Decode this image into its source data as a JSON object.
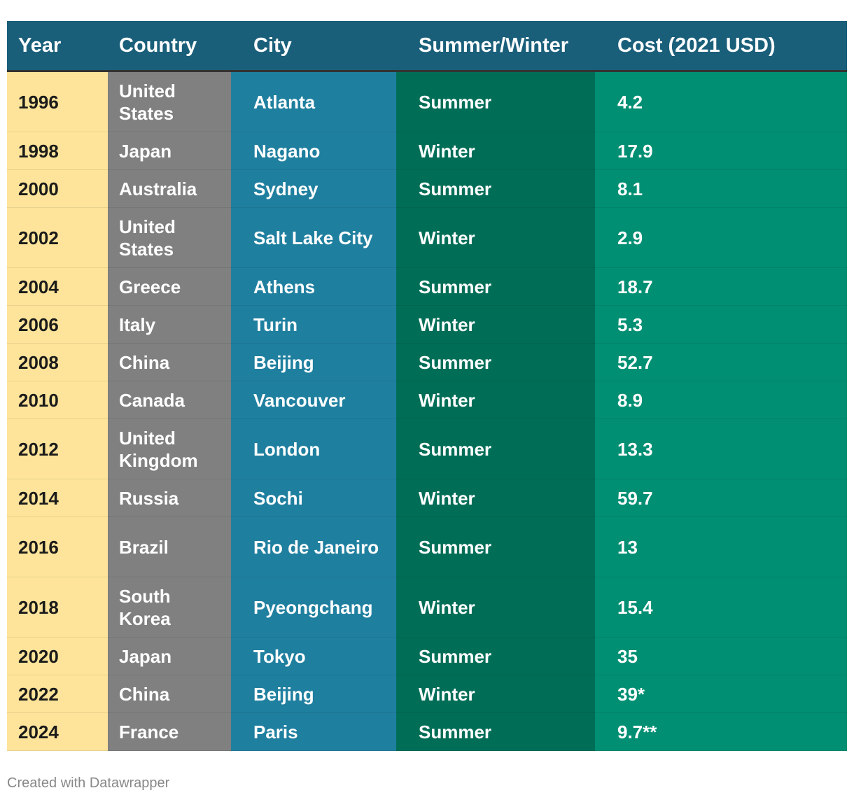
{
  "chart_data": {
    "type": "table",
    "columns": [
      "Year",
      "Country",
      "City",
      "Summer/Winter",
      "Cost (2021 USD)"
    ],
    "rows": [
      [
        "1996",
        "United States",
        "Atlanta",
        "Summer",
        "4.2"
      ],
      [
        "1998",
        "Japan",
        "Nagano",
        "Winter",
        "17.9"
      ],
      [
        "2000",
        "Australia",
        "Sydney",
        "Summer",
        "8.1"
      ],
      [
        "2002",
        "United States",
        "Salt Lake City",
        "Winter",
        "2.9"
      ],
      [
        "2004",
        "Greece",
        "Athens",
        "Summer",
        "18.7"
      ],
      [
        "2006",
        "Italy",
        "Turin",
        "Winter",
        "5.3"
      ],
      [
        "2008",
        "China",
        "Beijing",
        "Summer",
        "52.7"
      ],
      [
        "2010",
        "Canada",
        "Vancouver",
        "Winter",
        "8.9"
      ],
      [
        "2012",
        "United Kingdom",
        "London",
        "Summer",
        "13.3"
      ],
      [
        "2014",
        "Russia",
        "Sochi",
        "Winter",
        "59.7"
      ],
      [
        "2016",
        "Brazil",
        "Rio de Janeiro",
        "Summer",
        "13"
      ],
      [
        "2018",
        "South Korea",
        "Pyeongchang",
        "Winter",
        "15.4"
      ],
      [
        "2020",
        "Japan",
        "Tokyo",
        "Summer",
        "35"
      ],
      [
        "2022",
        "China",
        "Beijing",
        "Winter",
        "39*"
      ],
      [
        "2024",
        "France",
        "Paris",
        "Summer",
        "9.7**"
      ]
    ],
    "column_colors": [
      "#fde49a",
      "#808080",
      "#1f7f9f",
      "#006e57",
      "#008f73"
    ],
    "header_color": "#1a5f7a"
  },
  "footer": {
    "credit": "Created with Datawrapper"
  }
}
